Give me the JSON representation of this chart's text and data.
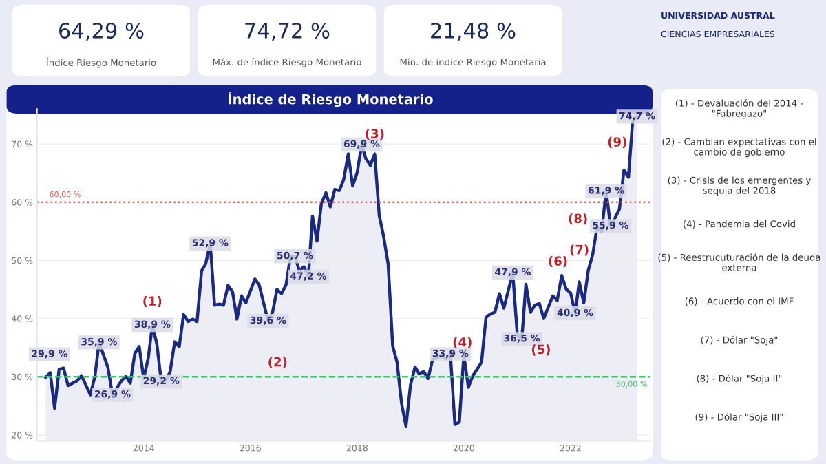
{
  "chart_data": {
    "type": "area",
    "title": "Índice de Riesgo Monetario",
    "x": [
      "2012-03",
      "2012-04",
      "2012-05",
      "2012-06",
      "2012-07",
      "2012-08",
      "2012-10",
      "2012-11",
      "2013-01",
      "2013-02",
      "2013-03",
      "2013-05",
      "2013-06",
      "2013-08",
      "2013-09",
      "2013-10",
      "2013-11",
      "2013-12",
      "2014-01",
      "2014-02",
      "2014-03",
      "2014-04",
      "2014-05",
      "2014-06",
      "2014-07",
      "2014-08",
      "2014-09",
      "2014-10",
      "2014-11",
      "2014-12",
      "2015-01",
      "2015-02",
      "2015-03",
      "2015-04",
      "2015-05",
      "2015-06",
      "2015-07",
      "2015-08",
      "2015-09",
      "2015-10",
      "2015-11",
      "2015-12",
      "2016-02",
      "2016-03",
      "2016-05",
      "2016-06",
      "2016-07",
      "2016-08",
      "2016-09",
      "2016-10",
      "2016-11",
      "2016-12",
      "2017-01",
      "2017-02",
      "2017-03",
      "2017-04",
      "2017-05",
      "2017-06",
      "2017-07",
      "2017-08",
      "2017-09",
      "2017-10",
      "2017-11",
      "2017-12",
      "2018-01",
      "2018-02",
      "2018-03",
      "2018-04",
      "2018-05",
      "2018-06",
      "2018-07",
      "2018-08",
      "2018-09",
      "2018-10",
      "2018-11",
      "2018-12",
      "2019-01",
      "2019-02",
      "2019-03",
      "2019-04",
      "2019-05",
      "2019-06",
      "2019-07",
      "2019-08",
      "2019-09",
      "2019-10",
      "2019-11",
      "2019-12",
      "2020-01",
      "2020-02",
      "2020-03",
      "2020-04",
      "2020-05",
      "2020-06",
      "2020-07",
      "2020-08",
      "2020-09",
      "2020-10",
      "2020-12",
      "2021-01",
      "2021-02",
      "2021-03",
      "2021-04",
      "2021-05",
      "2021-06",
      "2021-07",
      "2021-09",
      "2021-10",
      "2021-11",
      "2021-12",
      "2022-01",
      "2022-02",
      "2022-03",
      "2022-04",
      "2022-05",
      "2022-06",
      "2022-07",
      "2022-08",
      "2022-09",
      "2022-10",
      "2022-11",
      "2022-12",
      "2023-01",
      "2023-02",
      "2023-03",
      "2023-04"
    ],
    "series": [
      {
        "color": "#1a2a80",
        "values": [
          29.9,
          30.7,
          24.6,
          31.3,
          31.5,
          28.5,
          29.3,
          30.2,
          26.9,
          30.1,
          35.9,
          31.6,
          26.9,
          29.3,
          30.1,
          28.9,
          34.0,
          35.2,
          29.7,
          33.2,
          38.9,
          35.6,
          29.2,
          29.3,
          30.9,
          36.0,
          35.2,
          40.7,
          39.5,
          39.9,
          39.5,
          48.2,
          49.4,
          52.9,
          42.3,
          42.5,
          42.3,
          45.7,
          44.6,
          39.9,
          43.9,
          42.7,
          46.8,
          45.8,
          39.6,
          41.1,
          45.0,
          44.3,
          45.8,
          50.6,
          50.7,
          48.2,
          48.9,
          47.2,
          57.6,
          53.3,
          59.8,
          61.6,
          59.2,
          62.2,
          62.0,
          63.9,
          68.3,
          62.8,
          65.1,
          69.9,
          67.5,
          66.3,
          68.3,
          57.7,
          54.1,
          49.4,
          35.3,
          32.5,
          25.4,
          21.5,
          28.6,
          31.7,
          30.5,
          30.9,
          29.7,
          32.9,
          33.3,
          33.7,
          33.1,
          33.9,
          21.8,
          22.2,
          33.7,
          28.2,
          30.1,
          31.3,
          32.5,
          40.2,
          40.8,
          41.1,
          44.3,
          41.8,
          47.9,
          37.2,
          36.5,
          45.9,
          41.1,
          42.3,
          42.6,
          40.0,
          43.9,
          43.1,
          47.4,
          45.1,
          44.4,
          40.9,
          46.3,
          42.7,
          48.2,
          51.0,
          55.7,
          54.9,
          61.9,
          55.9,
          57.3,
          58.8,
          65.5,
          64.3,
          73.8,
          74.7
        ]
      }
    ],
    "xlim": [
      "2012-01",
      "2023-07"
    ],
    "xticks": [
      {
        "value": "2014-01",
        "label": "2014"
      },
      {
        "value": "2016-01",
        "label": "2016"
      },
      {
        "value": "2018-01",
        "label": "2018"
      },
      {
        "value": "2020-01",
        "label": "2020"
      },
      {
        "value": "2022-01",
        "label": "2022"
      }
    ],
    "ylim": [
      19,
      76
    ],
    "yticks": [
      {
        "value": 20,
        "label": "20 %"
      },
      {
        "value": 30,
        "label": "30 %"
      },
      {
        "value": 40,
        "label": "40 %"
      },
      {
        "value": 50,
        "label": "50 %"
      },
      {
        "value": 60,
        "label": "60 %"
      },
      {
        "value": 70,
        "label": "70 %"
      }
    ],
    "grid": "y",
    "legend": false,
    "ref_lines": [
      {
        "axis": "y",
        "value": 60,
        "label": "60,00 %",
        "color": "#e06060",
        "line_style": "dotted"
      },
      {
        "axis": "y",
        "value": 30,
        "label": "30,00 %",
        "color": "#40c070",
        "line_style": "dashed"
      }
    ],
    "annotations": [
      {
        "text": "29,9 %",
        "x": "2012-03",
        "y": 29.9
      },
      {
        "text": "35,9 %",
        "x": "2013-03",
        "y": 35.9
      },
      {
        "text": "26,9 %",
        "x": "2013-06",
        "y": 26.9
      },
      {
        "text": "38,9 %",
        "x": "2014-03",
        "y": 38.9
      },
      {
        "text": "29,2 %",
        "x": "2014-05",
        "y": 29.2
      },
      {
        "text": "52,9 %",
        "x": "2015-04",
        "y": 52.9
      },
      {
        "text": "39,6 %",
        "x": "2016-05",
        "y": 39.6
      },
      {
        "text": "50,7 %",
        "x": "2016-11",
        "y": 50.7
      },
      {
        "text": "47,2 %",
        "x": "2017-02",
        "y": 47.2
      },
      {
        "text": "69,9 %",
        "x": "2018-02",
        "y": 69.9
      },
      {
        "text": "33,9 %",
        "x": "2019-10",
        "y": 33.9
      },
      {
        "text": "47,9 %",
        "x": "2020-12",
        "y": 47.9
      },
      {
        "text": "36,5 %",
        "x": "2021-02",
        "y": 36.5
      },
      {
        "text": "40,9 %",
        "x": "2022-02",
        "y": 40.9
      },
      {
        "text": "61,9 %",
        "x": "2022-09",
        "y": 61.9
      },
      {
        "text": "55,9 %",
        "x": "2022-10",
        "y": 55.9
      },
      {
        "text": "74,7 %",
        "x": "2023-04",
        "y": 74.7
      },
      {
        "text": "(1)",
        "x": "2014-03",
        "y": 38.9
      },
      {
        "text": "(2)",
        "x": "2016-05",
        "y": 39.6
      },
      {
        "text": "(3)",
        "x": "2018-05",
        "y": 68.3
      },
      {
        "text": "(4)",
        "x": "2020-05",
        "y": 32.5
      },
      {
        "text": "(5)",
        "x": "2021-02",
        "y": 36.5
      },
      {
        "text": "(6)",
        "x": "2021-11",
        "y": 47.4
      },
      {
        "text": "(7)",
        "x": "2022-06",
        "y": 51.0
      },
      {
        "text": "(8)",
        "x": "2022-07",
        "y": 55.7
      },
      {
        "text": "(9)",
        "x": "2023-03",
        "y": 73.8
      },
      "64,29 %",
      "Índice Riesgo Monetario",
      "74,72 %",
      "Máx. de índice Riesgo Monetario",
      "21,48 %",
      "Mín. de índice Riesgo Monetaria",
      "UNIVERSIDAD AUSTRAL",
      "CIENCIAS EMPRESARIALES",
      "(1) - Devaluación del 2014 - \"Fabregazo\"",
      "(2) - Cambian expectativas con el cambio de gobierno",
      "(3) - Crisis de los emergentes y sequia del 2018",
      "(4) - Pandemia del Covid",
      "(5) - Reestrucuturación de la deuda externa",
      "(6) - Acuerdo con el IMF",
      "(7) - Dólar \"Soja\"",
      "(8) - Dólar \"Soja II\"",
      "(9) - Dólar \"Soja III\""
    ]
  }
}
